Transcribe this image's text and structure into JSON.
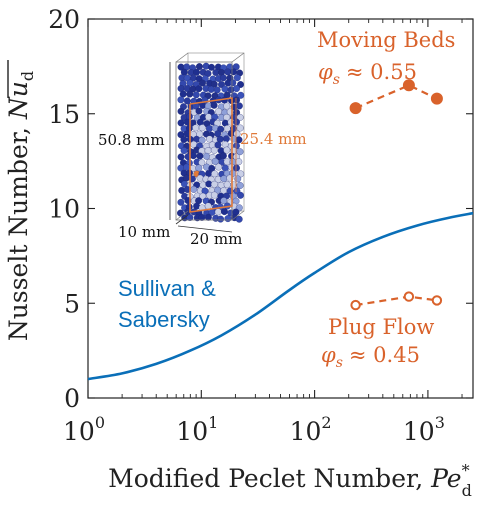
{
  "chart_data": {
    "type": "line",
    "title": "",
    "xlabel": "Modified Peclet Number, Pe*_d",
    "xlabel_text": "Modified Peclet Number, ",
    "xlabel_symbol": "Pe",
    "xlabel_sup": "*",
    "xlabel_sub": "d",
    "ylabel": "Nusselt Number, Nu_d (overlined)",
    "ylabel_text": "Nusselt Number, ",
    "ylabel_symbol": "Nu",
    "ylabel_sub": "d",
    "x_scale": "log",
    "xlim": [
      1,
      2500
    ],
    "ylim": [
      0,
      20
    ],
    "x_ticks": [
      {
        "value": 1,
        "base": "10",
        "exp": "0"
      },
      {
        "value": 10,
        "base": "10",
        "exp": "1"
      },
      {
        "value": 100,
        "base": "10",
        "exp": "2"
      },
      {
        "value": 1000,
        "base": "10",
        "exp": "3"
      }
    ],
    "y_ticks": [
      {
        "value": 0,
        "label": "0"
      },
      {
        "value": 5,
        "label": "5"
      },
      {
        "value": 10,
        "label": "10"
      },
      {
        "value": 15,
        "label": "15"
      },
      {
        "value": 20,
        "label": "20"
      }
    ],
    "grid": false,
    "series": [
      {
        "name": "Sullivan & Sabersky",
        "style": "solid-line",
        "color": "#0a6fb8",
        "x": [
          1,
          2,
          4,
          8,
          15,
          30,
          60,
          100,
          200,
          400,
          800,
          1500,
          2500
        ],
        "y": [
          1.0,
          1.3,
          1.8,
          2.5,
          3.3,
          4.4,
          5.7,
          6.6,
          7.7,
          8.5,
          9.1,
          9.5,
          9.75
        ]
      },
      {
        "name": "Moving Beds",
        "style": "dashed-filled-markers",
        "color": "#d9622b",
        "x": [
          230,
          680,
          1200
        ],
        "y": [
          15.3,
          16.5,
          15.8
        ]
      },
      {
        "name": "Plug Flow",
        "style": "dashed-open-markers",
        "color": "#d9622b",
        "x": [
          230,
          680,
          1200
        ],
        "y": [
          4.9,
          5.35,
          5.15
        ]
      }
    ],
    "annotations": {
      "sullivan_line1": "Sullivan &",
      "sullivan_line2": "Sabersky",
      "moving_title": "Moving Beds",
      "moving_phi_value": "≈ 0.55",
      "plug_title": "Plug Flow",
      "plug_phi_value": "≈ 0.45",
      "phi_symbol": "φ",
      "phi_sub": "s"
    },
    "inset": {
      "height_label": "50.8 mm",
      "window_label": "25.4 mm",
      "depth_label": "10 mm",
      "width_label": "20 mm",
      "particle_color": "#2a3b9c",
      "hot_color": "#e07a3a"
    }
  }
}
